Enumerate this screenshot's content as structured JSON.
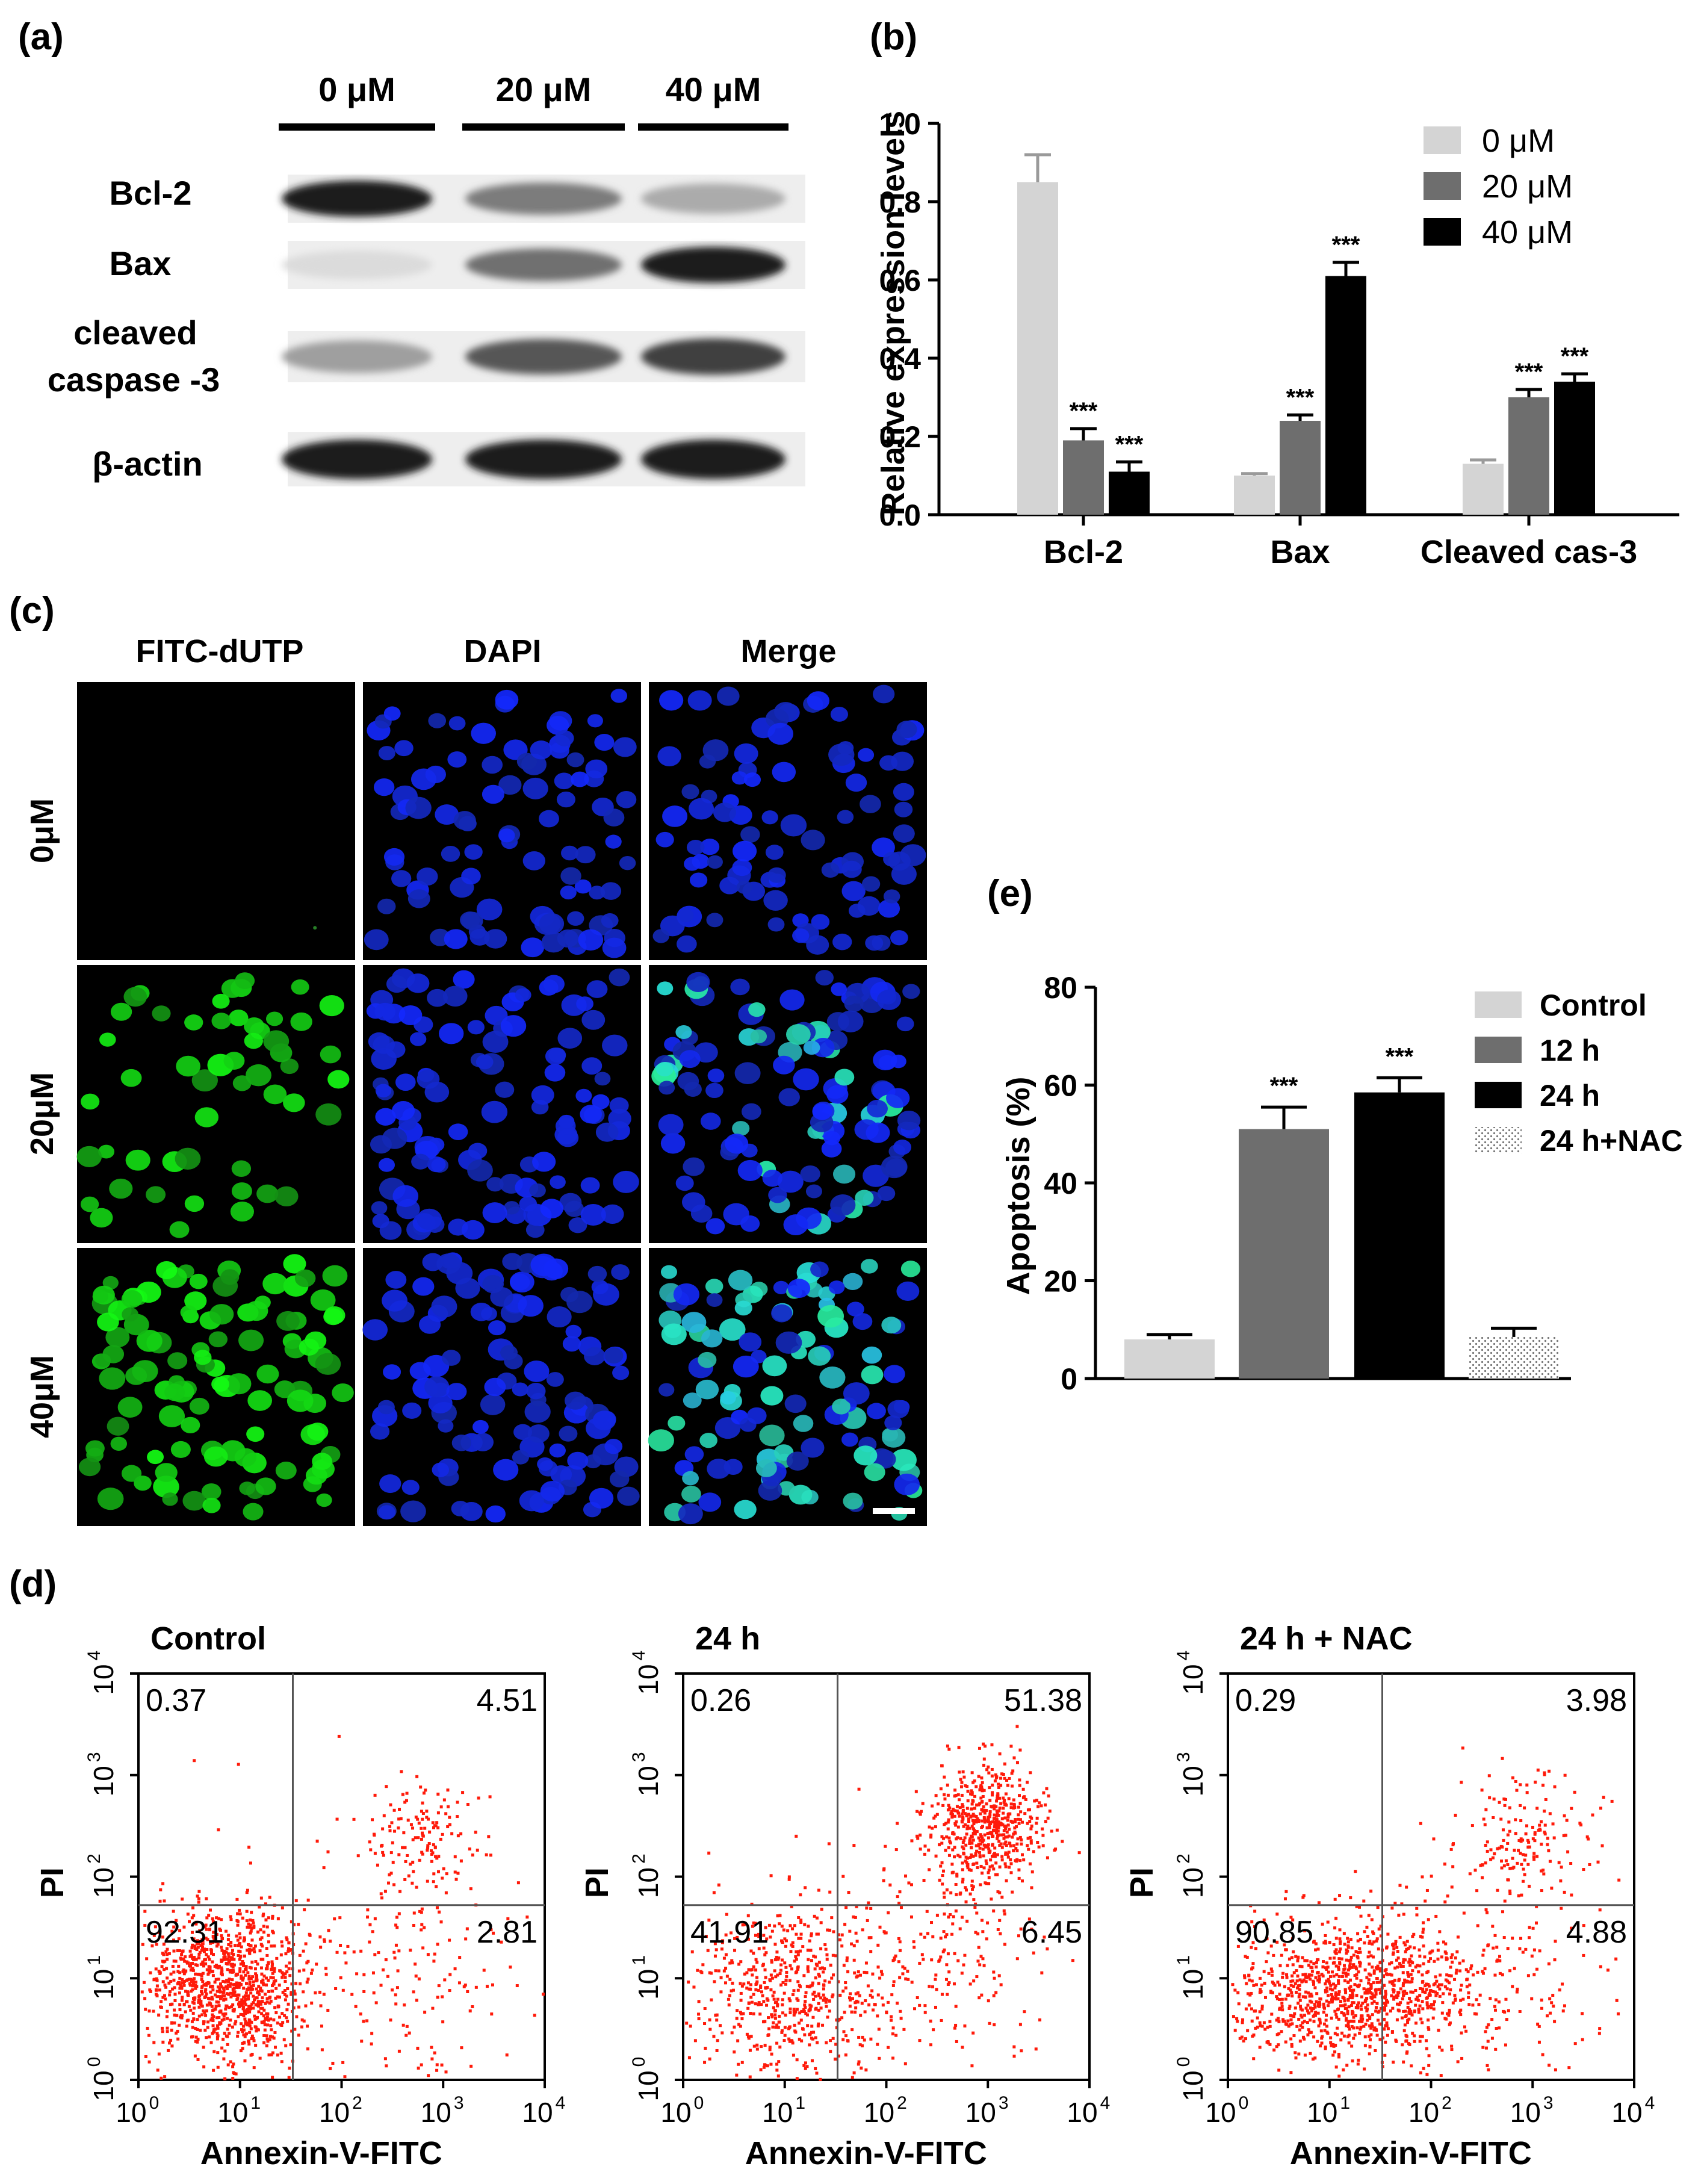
{
  "panel_labels": {
    "a": "(a)",
    "b": "(b)",
    "c": "(c)",
    "d": "(d)",
    "e": "(e)"
  },
  "colors": {
    "light_gray": "#d4d4d4",
    "mid_gray": "#6e6e6e",
    "black": "#000000",
    "dot_red": "#ff1a0a",
    "nucleus_blue": "#1f3cff",
    "tunel_green": "#2cd42c"
  },
  "western": {
    "concentrations": [
      "0 μM",
      "20 μM",
      "40 μM"
    ],
    "proteins": [
      "Bcl-2",
      "Bax",
      "cleaved",
      "caspase -3",
      "β-actin"
    ],
    "band_intensity": {
      "bcl2": [
        0.95,
        0.55,
        0.35
      ],
      "bax": [
        0.15,
        0.6,
        0.95
      ],
      "cleaved_caspase3": [
        0.4,
        0.7,
        0.8
      ],
      "beta_actin": [
        0.95,
        0.95,
        0.95
      ]
    }
  },
  "chart_b": {
    "type": "bar",
    "ylabel": "Relative expression levels",
    "ylim": [
      0,
      1.0
    ],
    "yticks": [
      "0.0",
      "0.2",
      "0.4",
      "0.6",
      "0.8",
      "1.0"
    ],
    "categories": [
      "Bcl-2",
      "Bax",
      "Cleaved cas-3"
    ],
    "series": [
      {
        "name": "0 μM",
        "values": [
          0.85,
          0.1,
          0.13
        ],
        "errors": [
          0.07,
          0.005,
          0.01
        ],
        "sig": [
          "",
          "",
          ""
        ]
      },
      {
        "name": "20 μM",
        "values": [
          0.19,
          0.24,
          0.3
        ],
        "errors": [
          0.03,
          0.015,
          0.02
        ],
        "sig": [
          "***",
          "***",
          "***"
        ]
      },
      {
        "name": "40 μM",
        "values": [
          0.11,
          0.61,
          0.34
        ],
        "errors": [
          0.025,
          0.035,
          0.02
        ],
        "sig": [
          "***",
          "***",
          "***"
        ]
      }
    ],
    "legend_position": "top-right"
  },
  "tunel": {
    "columns": [
      "FITC-dUTP",
      "DAPI",
      "Merge"
    ],
    "rows": [
      "0μM",
      "20μM",
      "40μM"
    ]
  },
  "chart_e": {
    "type": "bar",
    "ylabel": "Apoptosis (%)",
    "ylim": [
      0,
      80
    ],
    "yticks": [
      "0",
      "20",
      "40",
      "60",
      "80"
    ],
    "categories": [
      "Control",
      "12 h",
      "24 h",
      "24 h+NAC"
    ],
    "values": [
      8,
      51,
      58.5,
      8.5
    ],
    "errors": [
      1,
      4.5,
      3,
      1.8
    ],
    "sig": [
      "",
      "***",
      "***",
      ""
    ],
    "legend_position": "top-right"
  },
  "flow": {
    "xlabel": "Annexin-V-FITC",
    "ylabel": "PI",
    "ticks": [
      "10",
      "10",
      "10",
      "10",
      "10"
    ],
    "tick_exponents": [
      "0",
      "1",
      "2",
      "3",
      "4"
    ],
    "panels": [
      {
        "title": "Control",
        "q_ul": "0.37",
        "q_ur": "4.51",
        "q_ll": "92.31",
        "q_lr": "2.81"
      },
      {
        "title": "24 h",
        "q_ul": "0.26",
        "q_ur": "51.38",
        "q_ll": "41.91",
        "q_lr": "6.45"
      },
      {
        "title": "24 h + NAC",
        "q_ul": "0.29",
        "q_ur": "3.98",
        "q_ll": "90.85",
        "q_lr": "4.88"
      }
    ]
  }
}
